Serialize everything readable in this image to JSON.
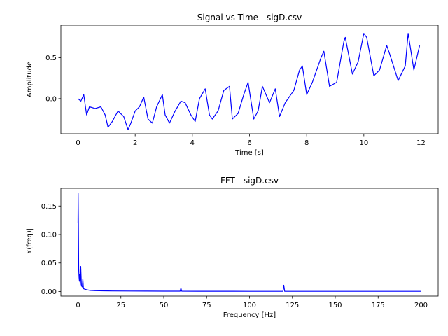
{
  "chart_data": [
    {
      "type": "line",
      "title": "Signal vs Time - sigD.csv",
      "xlabel": "Time [s]",
      "ylabel": "Amplitude",
      "xlim": [
        -0.6,
        12.6
      ],
      "ylim": [
        -0.43,
        0.9
      ],
      "xticks": [
        0,
        2,
        4,
        6,
        8,
        10,
        12
      ],
      "yticks": [
        0.0,
        0.5
      ],
      "ytick_labels": [
        "0.0",
        "0.5"
      ],
      "grid": false,
      "series": [
        {
          "color": "#0000ff",
          "x": [
            0,
            0.1,
            0.2,
            0.3,
            0.4,
            0.6,
            0.8,
            0.95,
            1.05,
            1.2,
            1.4,
            1.6,
            1.75,
            1.85,
            2.0,
            2.15,
            2.3,
            2.45,
            2.6,
            2.75,
            2.95,
            3.05,
            3.2,
            3.4,
            3.6,
            3.75,
            3.95,
            4.1,
            4.25,
            4.45,
            4.6,
            4.7,
            4.9,
            5.1,
            5.3,
            5.4,
            5.6,
            5.8,
            5.95,
            6.15,
            6.3,
            6.45,
            6.7,
            6.9,
            7.05,
            7.25,
            7.55,
            7.75,
            7.85,
            8.0,
            8.2,
            8.5,
            8.6,
            8.8,
            9.05,
            9.3,
            9.35,
            9.6,
            9.8,
            10.0,
            10.1,
            10.35,
            10.55,
            10.8,
            10.9,
            11.2,
            11.45,
            11.55,
            11.75,
            11.95
          ],
          "y": [
            0.0,
            -0.03,
            0.05,
            -0.2,
            -0.1,
            -0.12,
            -0.1,
            -0.2,
            -0.35,
            -0.28,
            -0.15,
            -0.22,
            -0.38,
            -0.3,
            -0.15,
            -0.1,
            0.02,
            -0.25,
            -0.3,
            -0.1,
            0.05,
            -0.2,
            -0.3,
            -0.15,
            -0.03,
            -0.05,
            -0.2,
            -0.28,
            0.0,
            0.12,
            -0.2,
            -0.25,
            -0.15,
            0.1,
            0.15,
            -0.25,
            -0.18,
            0.05,
            0.2,
            -0.25,
            -0.15,
            0.15,
            -0.05,
            0.12,
            -0.22,
            -0.05,
            0.1,
            0.35,
            0.4,
            0.05,
            0.2,
            0.5,
            0.58,
            0.15,
            0.2,
            0.7,
            0.75,
            0.3,
            0.45,
            0.8,
            0.75,
            0.28,
            0.35,
            0.65,
            0.55,
            0.22,
            0.4,
            0.8,
            0.35,
            0.65
          ]
        }
      ]
    },
    {
      "type": "line",
      "title": "FFT - sigD.csv",
      "xlabel": "Frequency [Hz]",
      "ylabel": "|Y(freq)|",
      "xlim": [
        -10,
        210
      ],
      "ylim": [
        -0.008,
        0.181
      ],
      "xticks": [
        0,
        25,
        50,
        75,
        100,
        125,
        150,
        175,
        200
      ],
      "yticks": [
        0.0,
        0.05,
        0.1,
        0.15
      ],
      "ytick_labels": [
        "0.00",
        "0.05",
        "0.10",
        "0.15"
      ],
      "grid": false,
      "series": [
        {
          "color": "#0000ff",
          "x": [
            0,
            0.1,
            0.2,
            0.4,
            0.6,
            0.8,
            1.0,
            1.3,
            1.6,
            2.0,
            2.5,
            2.8,
            3.2,
            4,
            5,
            7,
            10,
            15,
            20,
            30,
            40,
            50,
            59.5,
            60,
            60.5,
            70,
            80,
            90,
            100,
            110,
            119.5,
            120,
            120.5,
            130,
            140,
            150,
            160,
            170,
            180,
            190,
            200
          ],
          "y": [
            0.12,
            0.172,
            0.13,
            0.04,
            0.025,
            0.018,
            0.03,
            0.012,
            0.044,
            0.01,
            0.008,
            0.022,
            0.005,
            0.004,
            0.003,
            0.002,
            0.0015,
            0.0012,
            0.001,
            0.0008,
            0.0007,
            0.0006,
            0.0006,
            0.006,
            0.0006,
            0.0005,
            0.0005,
            0.0005,
            0.0004,
            0.0004,
            0.0004,
            0.011,
            0.0004,
            0.0004,
            0.0003,
            0.0003,
            0.0003,
            0.0003,
            0.0003,
            0.0003,
            0.0003
          ]
        }
      ]
    }
  ]
}
